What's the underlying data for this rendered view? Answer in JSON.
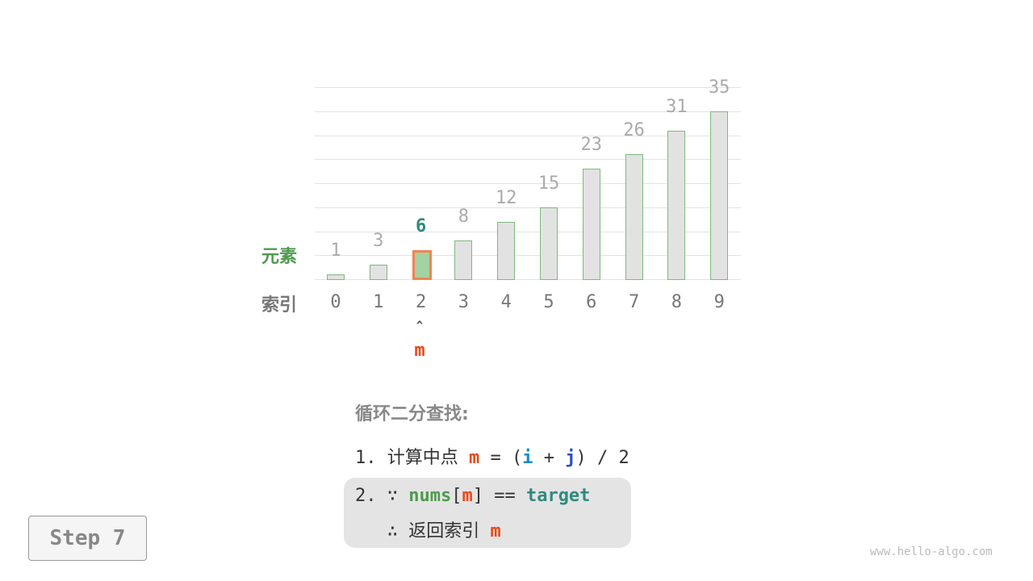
{
  "chart_data": {
    "type": "bar",
    "categories": [
      "0",
      "1",
      "2",
      "3",
      "4",
      "5",
      "6",
      "7",
      "8",
      "9"
    ],
    "values": [
      1,
      3,
      6,
      8,
      12,
      15,
      23,
      26,
      31,
      35
    ],
    "highlight_index": 2,
    "ylim": [
      0,
      40
    ],
    "grid": true,
    "row_labels": {
      "value": "元素",
      "index": "索引"
    },
    "colors": {
      "bar": "#e2e2e2",
      "bar_border": "#7cba7c",
      "highlight_fill": "#a3d2a3",
      "highlight_border": "#f5824f",
      "highlight_text": "#2f8a7e"
    }
  },
  "pointer": {
    "arrow": "^",
    "label": "m",
    "color": "#e8491a"
  },
  "steps": {
    "title": "循环二分查找:",
    "line1": {
      "prefix": "1. 计算中点 ",
      "m": "m",
      "eq": " = (",
      "i": "i",
      "plus": " + ",
      "j": "j",
      "rest": ") / 2"
    },
    "line2": {
      "prefix": "2. ∵ ",
      "nums": "nums",
      "lb": "[",
      "m": "m",
      "rb": "] == ",
      "target": "target"
    },
    "line3": {
      "prefix": "   ∴ 返回索引 ",
      "m": "m"
    }
  },
  "step_button": "Step 7",
  "watermark": "www.hello-algo.com"
}
